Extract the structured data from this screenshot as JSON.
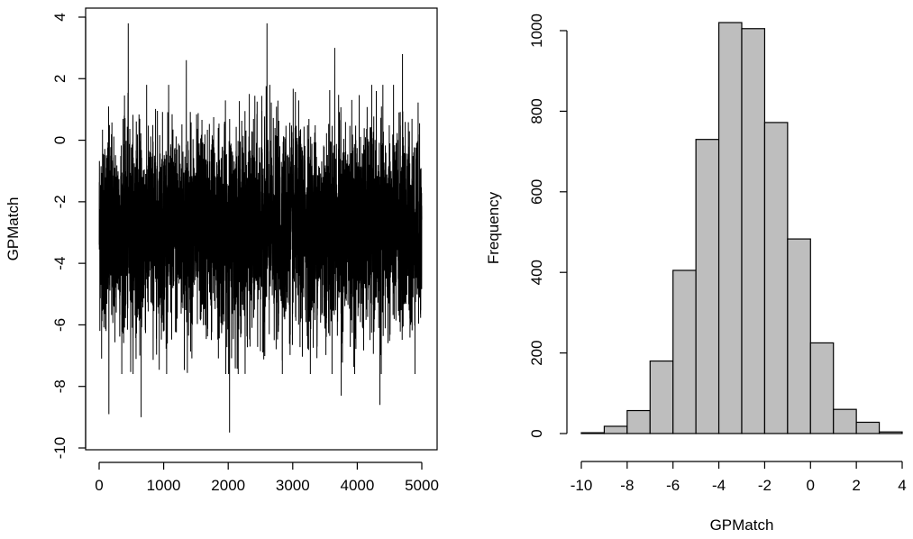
{
  "chart_data": [
    {
      "type": "line",
      "title": "",
      "xlabel": "",
      "ylabel": "GPMatch",
      "xlim": [
        0,
        5000
      ],
      "ylim": [
        -10,
        4
      ],
      "x_ticks": [
        0,
        1000,
        2000,
        3000,
        4000,
        5000
      ],
      "x_tick_labels": [
        "0",
        "1000",
        "2000",
        "3000",
        "4000",
        "5000"
      ],
      "y_ticks": [
        -10,
        -8,
        -6,
        -4,
        -2,
        0,
        2,
        4
      ],
      "y_tick_labels": [
        "-10",
        "-8",
        "-6",
        "-4",
        "-2",
        "0",
        "2",
        "4"
      ],
      "grid": false,
      "n_iterations": 5000,
      "series_center": -2.9,
      "series_spread_sd": 1.6,
      "observed_max": 3.8,
      "observed_min": -9.5,
      "line_color": "#000000",
      "spikes": [
        {
          "x": 450,
          "y": 3.8
        },
        {
          "x": 2600,
          "y": 3.8
        },
        {
          "x": 1350,
          "y": 2.6
        },
        {
          "x": 3650,
          "y": 3.0
        },
        {
          "x": 4700,
          "y": 2.8
        },
        {
          "x": 2020,
          "y": -9.5
        },
        {
          "x": 150,
          "y": -8.9
        },
        {
          "x": 650,
          "y": -9.0
        },
        {
          "x": 3750,
          "y": -8.3
        },
        {
          "x": 4350,
          "y": -8.6
        }
      ]
    },
    {
      "type": "bar",
      "title": "",
      "xlabel": "GPMatch",
      "ylabel": "Frequency",
      "xlim": [
        -10,
        4
      ],
      "ylim": [
        0,
        1000
      ],
      "bin_edges": [
        -10,
        -9,
        -8,
        -7,
        -6,
        -5,
        -4,
        -3,
        -2,
        -1,
        0,
        1,
        2,
        3,
        4
      ],
      "values": [
        2,
        18,
        57,
        180,
        405,
        730,
        1020,
        1005,
        772,
        483,
        225,
        60,
        28,
        4
      ],
      "x_ticks": [
        -10,
        -8,
        -6,
        -4,
        -2,
        0,
        2,
        4
      ],
      "x_tick_labels": [
        "-10",
        "-8",
        "-6",
        "-4",
        "-2",
        "0",
        "2",
        "4"
      ],
      "y_ticks": [
        0,
        200,
        400,
        600,
        800,
        1000
      ],
      "y_tick_labels": [
        "0",
        "200",
        "400",
        "600",
        "800",
        "1000"
      ],
      "bar_color": "#bebebe",
      "grid": false
    }
  ]
}
